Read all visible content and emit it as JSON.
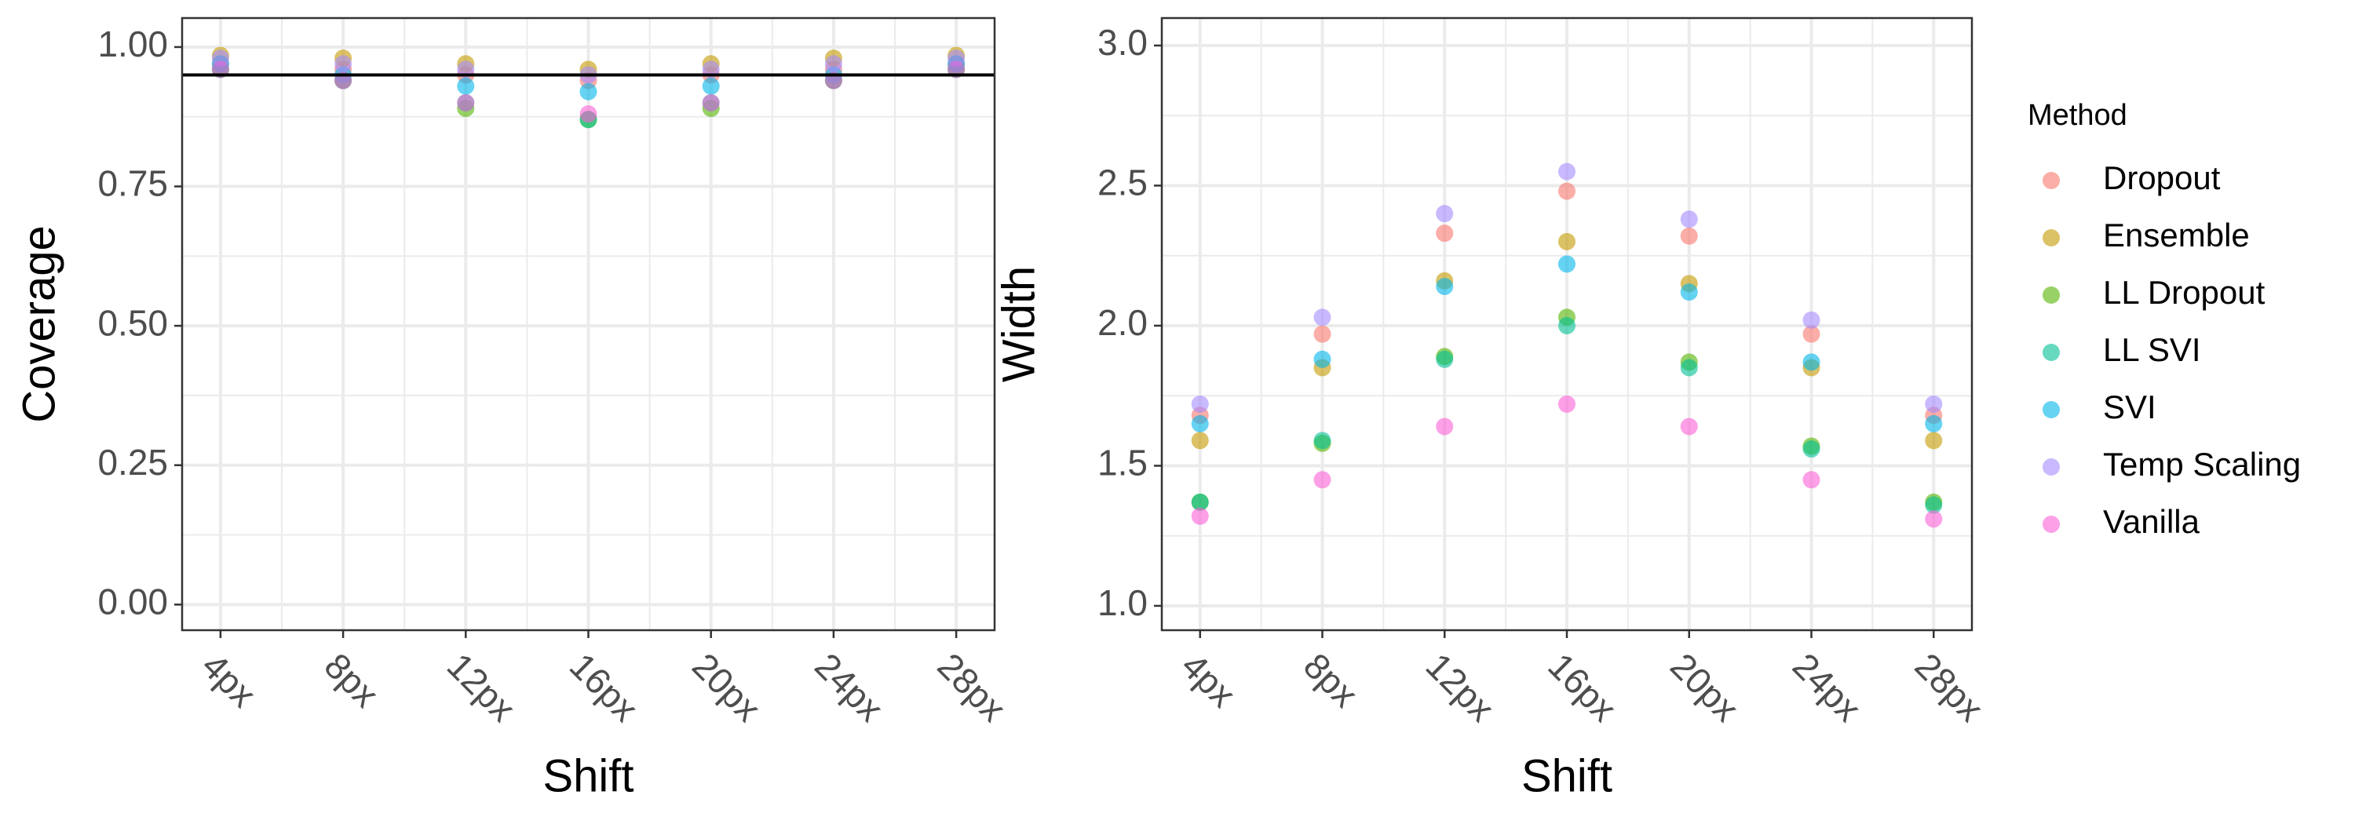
{
  "chart_data": [
    {
      "type": "scatter",
      "xlabel": "Shift",
      "ylabel": "Coverage",
      "categories": [
        "4px",
        "8px",
        "12px",
        "16px",
        "20px",
        "24px",
        "28px"
      ],
      "ylim": [
        -0.046,
        1.052
      ],
      "yticks": [
        {
          "value": 0,
          "label": "0.00"
        },
        0.25,
        {
          "value": 0.5,
          "label": "0.50"
        },
        0.75,
        {
          "value": 1,
          "label": "1.00"
        }
      ],
      "hline": 0.95,
      "grid": true,
      "series": [
        {
          "name": "Dropout",
          "color": "#F8766D",
          "values": [
            0.97,
            0.96,
            0.95,
            0.94,
            0.95,
            0.96,
            0.97
          ]
        },
        {
          "name": "Ensemble",
          "color": "#C49A00",
          "values": [
            0.985,
            0.98,
            0.97,
            0.96,
            0.97,
            0.98,
            0.985
          ]
        },
        {
          "name": "LL Dropout",
          "color": "#53B400",
          "values": [
            0.96,
            0.94,
            0.89,
            0.87,
            0.89,
            0.94,
            0.96
          ]
        },
        {
          "name": "LL SVI",
          "color": "#00C094",
          "values": [
            0.96,
            0.94,
            0.9,
            0.87,
            0.9,
            0.94,
            0.96
          ]
        },
        {
          "name": "SVI",
          "color": "#00B6EB",
          "values": [
            0.97,
            0.95,
            0.93,
            0.92,
            0.93,
            0.95,
            0.97
          ]
        },
        {
          "name": "Temp Scaling",
          "color": "#A58AFF",
          "values": [
            0.98,
            0.97,
            0.96,
            0.95,
            0.96,
            0.97,
            0.98
          ]
        },
        {
          "name": "Vanilla",
          "color": "#FB61D7",
          "values": [
            0.96,
            0.94,
            0.9,
            0.88,
            0.9,
            0.94,
            0.96
          ]
        }
      ]
    },
    {
      "type": "scatter",
      "xlabel": "Shift",
      "ylabel": "Width",
      "legend_title": "Method",
      "legend": "right",
      "categories": [
        "4px",
        "8px",
        "12px",
        "16px",
        "20px",
        "24px",
        "28px"
      ],
      "ylim": [
        0.913,
        3.098
      ],
      "yticks": [
        {
          "value": 1,
          "label": "1.0"
        },
        1.5,
        {
          "value": 2,
          "label": "2.0"
        },
        2.5,
        {
          "value": 3,
          "label": "3.0"
        }
      ],
      "grid": true,
      "series": [
        {
          "name": "Dropout",
          "color": "#F8766D",
          "values": [
            1.68,
            1.97,
            2.33,
            2.48,
            2.32,
            1.97,
            1.68
          ]
        },
        {
          "name": "Ensemble",
          "color": "#C49A00",
          "values": [
            1.59,
            1.85,
            2.16,
            2.3,
            2.15,
            1.85,
            1.59
          ]
        },
        {
          "name": "LL Dropout",
          "color": "#53B400",
          "values": [
            1.37,
            1.58,
            1.89,
            2.03,
            1.87,
            1.57,
            1.37
          ]
        },
        {
          "name": "LL SVI",
          "color": "#00C094",
          "values": [
            1.37,
            1.59,
            1.88,
            2.0,
            1.85,
            1.56,
            1.36
          ]
        },
        {
          "name": "SVI",
          "color": "#00B6EB",
          "values": [
            1.65,
            1.88,
            2.14,
            2.22,
            2.12,
            1.87,
            1.65
          ]
        },
        {
          "name": "Temp Scaling",
          "color": "#A58AFF",
          "values": [
            1.72,
            2.03,
            2.4,
            2.55,
            2.38,
            2.02,
            1.72
          ]
        },
        {
          "name": "Vanilla",
          "color": "#FB61D7",
          "values": [
            1.32,
            1.45,
            1.64,
            1.72,
            1.64,
            1.45,
            1.31
          ]
        }
      ]
    }
  ]
}
